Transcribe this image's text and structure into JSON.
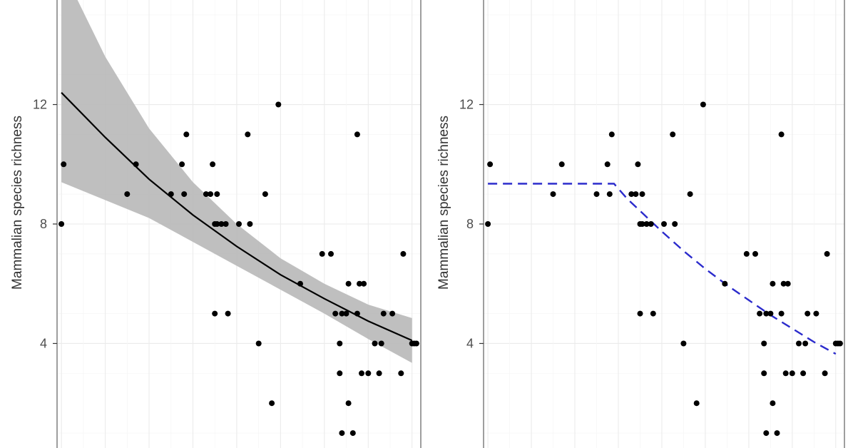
{
  "chart_data": [
    {
      "type": "scatter",
      "ylabel": "Mammalian species richness",
      "yticks": [
        4,
        8,
        12
      ],
      "ylim": [
        0.5,
        15.5
      ],
      "xlim": [
        -0.1,
        8.2
      ],
      "grid": true,
      "points": [
        [
          0,
          8
        ],
        [
          0.05,
          10
        ],
        [
          1.5,
          9
        ],
        [
          1.7,
          10
        ],
        [
          2.5,
          9
        ],
        [
          2.8,
          9
        ],
        [
          2.75,
          10
        ],
        [
          2.85,
          11
        ],
        [
          3.3,
          9
        ],
        [
          3.4,
          9
        ],
        [
          3.45,
          10
        ],
        [
          3.55,
          9
        ],
        [
          3.5,
          8
        ],
        [
          3.55,
          8
        ],
        [
          3.65,
          8
        ],
        [
          3.75,
          8
        ],
        [
          3.5,
          5
        ],
        [
          3.8,
          5
        ],
        [
          4.05,
          8
        ],
        [
          4.3,
          8
        ],
        [
          4.25,
          11
        ],
        [
          4.5,
          4
        ],
        [
          4.65,
          9
        ],
        [
          4.8,
          2
        ],
        [
          4.95,
          12
        ],
        [
          5.45,
          6
        ],
        [
          5.95,
          7
        ],
        [
          6.15,
          7
        ],
        [
          6.25,
          5
        ],
        [
          6.35,
          4
        ],
        [
          6.4,
          5
        ],
        [
          6.35,
          3
        ],
        [
          6.4,
          1
        ],
        [
          6.5,
          5
        ],
        [
          6.55,
          6
        ],
        [
          6.55,
          2
        ],
        [
          6.65,
          1
        ],
        [
          6.75,
          5
        ],
        [
          6.75,
          11
        ],
        [
          6.8,
          6
        ],
        [
          6.9,
          6
        ],
        [
          6.85,
          3
        ],
        [
          7.0,
          3
        ],
        [
          7.15,
          4
        ],
        [
          7.3,
          4
        ],
        [
          7.25,
          3
        ],
        [
          7.35,
          5
        ],
        [
          7.55,
          5
        ],
        [
          7.75,
          3
        ],
        [
          7.8,
          7
        ],
        [
          8.0,
          4
        ],
        [
          8.05,
          4
        ],
        [
          8.1,
          4
        ]
      ],
      "fit": {
        "style": "solid",
        "color": "#000000",
        "x": [
          0,
          1,
          2,
          3,
          4,
          5,
          6,
          7,
          8
        ],
        "y": [
          12.4,
          10.9,
          9.5,
          8.3,
          7.25,
          6.3,
          5.5,
          4.75,
          4.1
        ]
      },
      "confidence_band": {
        "color": "#b8b8b8",
        "x": [
          0,
          1,
          2,
          3,
          4,
          5,
          6,
          7,
          8
        ],
        "upper": [
          16.6,
          13.6,
          11.2,
          9.4,
          8.0,
          6.85,
          6.0,
          5.3,
          4.85
        ],
        "lower": [
          9.4,
          8.8,
          8.2,
          7.4,
          6.6,
          5.8,
          5.0,
          4.15,
          3.35
        ]
      }
    },
    {
      "type": "scatter",
      "ylabel": "Mammalian species richness",
      "yticks": [
        4,
        8,
        12
      ],
      "ylim": [
        0.5,
        15.5
      ],
      "xlim": [
        -0.1,
        8.2
      ],
      "grid": true,
      "points": [
        [
          0,
          8
        ],
        [
          0.05,
          10
        ],
        [
          1.5,
          9
        ],
        [
          1.7,
          10
        ],
        [
          2.5,
          9
        ],
        [
          2.8,
          9
        ],
        [
          2.75,
          10
        ],
        [
          2.85,
          11
        ],
        [
          3.3,
          9
        ],
        [
          3.4,
          9
        ],
        [
          3.45,
          10
        ],
        [
          3.55,
          9
        ],
        [
          3.5,
          8
        ],
        [
          3.55,
          8
        ],
        [
          3.65,
          8
        ],
        [
          3.75,
          8
        ],
        [
          3.5,
          5
        ],
        [
          3.8,
          5
        ],
        [
          4.05,
          8
        ],
        [
          4.3,
          8
        ],
        [
          4.25,
          11
        ],
        [
          4.5,
          4
        ],
        [
          4.65,
          9
        ],
        [
          4.8,
          2
        ],
        [
          4.95,
          12
        ],
        [
          5.45,
          6
        ],
        [
          5.95,
          7
        ],
        [
          6.15,
          7
        ],
        [
          6.25,
          5
        ],
        [
          6.35,
          4
        ],
        [
          6.4,
          5
        ],
        [
          6.35,
          3
        ],
        [
          6.4,
          1
        ],
        [
          6.5,
          5
        ],
        [
          6.55,
          6
        ],
        [
          6.55,
          2
        ],
        [
          6.65,
          1
        ],
        [
          6.75,
          5
        ],
        [
          6.75,
          11
        ],
        [
          6.8,
          6
        ],
        [
          6.9,
          6
        ],
        [
          6.85,
          3
        ],
        [
          7.0,
          3
        ],
        [
          7.15,
          4
        ],
        [
          7.3,
          4
        ],
        [
          7.25,
          3
        ],
        [
          7.35,
          5
        ],
        [
          7.55,
          5
        ],
        [
          7.75,
          3
        ],
        [
          7.8,
          7
        ],
        [
          8.0,
          4
        ],
        [
          8.05,
          4
        ],
        [
          8.1,
          4
        ]
      ],
      "fit": {
        "style": "dashed",
        "color": "#2b2bcc",
        "x": [
          0,
          1,
          2,
          2.9,
          3.2,
          3.6,
          4.0,
          4.5,
          5.0,
          5.5,
          6.0,
          6.5,
          7.0,
          7.5,
          8.0
        ],
        "y": [
          9.35,
          9.35,
          9.35,
          9.35,
          8.85,
          8.3,
          7.75,
          7.1,
          6.5,
          5.95,
          5.45,
          4.95,
          4.5,
          4.05,
          3.65
        ]
      }
    }
  ]
}
